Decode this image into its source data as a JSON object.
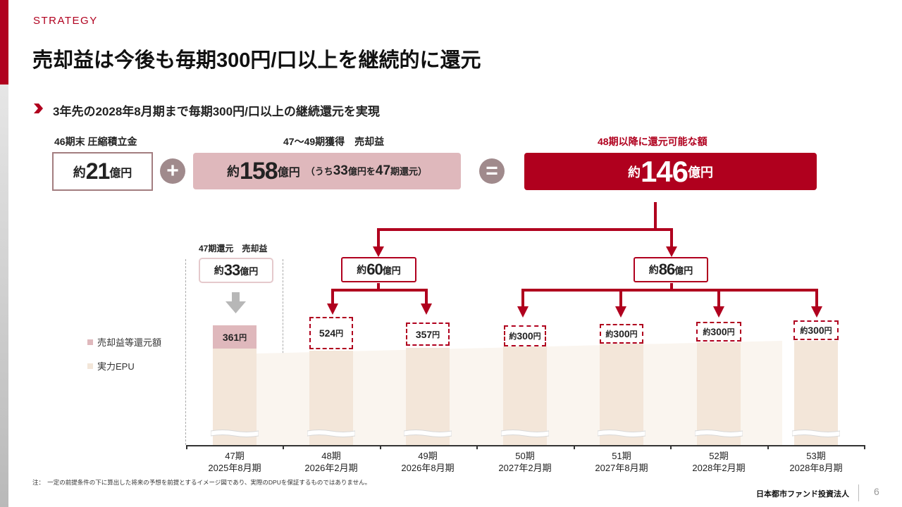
{
  "header": {
    "section": "STRATEGY",
    "title": "売却益は今後も毎期300円/口以上を継続的に還元"
  },
  "subheading": "3年先の2028年8月期まで毎期300円/口以上の継続還元を実現",
  "equation": {
    "item1": {
      "caption": "46期末 圧縮積立金",
      "prefix": "約",
      "value": "21",
      "unit": "億円"
    },
    "item2": {
      "caption": "47～49期獲得　売却益",
      "prefix": "約",
      "value": "158",
      "unit": "億円",
      "note_open": "（うち",
      "note_value": "33",
      "note_mid": "億円を",
      "note_period": "47",
      "note_close": "期還元）"
    },
    "plus": "+",
    "equals": "=",
    "result": {
      "caption": "48期以降に還元可能な額",
      "prefix": "約",
      "value": "146",
      "unit": "億円"
    }
  },
  "allocation": {
    "left": {
      "prefix": "約",
      "value": "60",
      "unit": "億円"
    },
    "right": {
      "prefix": "約",
      "value": "86",
      "unit": "億円"
    },
    "p47": {
      "caption": "47期還元　売却益",
      "prefix": "約",
      "value": "33",
      "unit": "億円"
    }
  },
  "legend": [
    {
      "label": "売却益等還元額",
      "color": "#dfb8bc"
    },
    {
      "label": "実力EPU",
      "color": "#f3e6d9"
    }
  ],
  "chart_data": {
    "type": "bar",
    "categories": [
      "47期\n2025年8月期",
      "48期\n2026年2月期",
      "49期\n2026年8月期",
      "50期\n2027年2月期",
      "51期\n2027年8月期",
      "52期\n2028年2月期",
      "53期\n2028年8月期"
    ],
    "series": [
      {
        "name": "売却益等還元額"
      },
      {
        "name": "実力EPU"
      }
    ],
    "value_labels": [
      {
        "value": "361",
        "unit": "円"
      },
      {
        "value": "524",
        "unit": "円"
      },
      {
        "value": "357",
        "unit": "円"
      },
      {
        "prefix": "約",
        "value": "300",
        "unit": "円"
      },
      {
        "prefix": "約",
        "value": "300",
        "unit": "円"
      },
      {
        "prefix": "約",
        "value": "300",
        "unit": "円"
      },
      {
        "prefix": "約",
        "value": "300",
        "unit": "円"
      }
    ],
    "axis_break": true
  },
  "footer": {
    "note": "注：　一定の前提条件の下に算出した将来の予想を前提とするイメージ図であり、実際のDPUを保証するものではありません。",
    "company": "日本都市ファンド投資法人",
    "page": "6"
  },
  "colors": {
    "accent": "#b0001e",
    "pink": "#dfb8bc",
    "beige": "#f3e6d9",
    "gray_circle": "#a08a8c"
  }
}
